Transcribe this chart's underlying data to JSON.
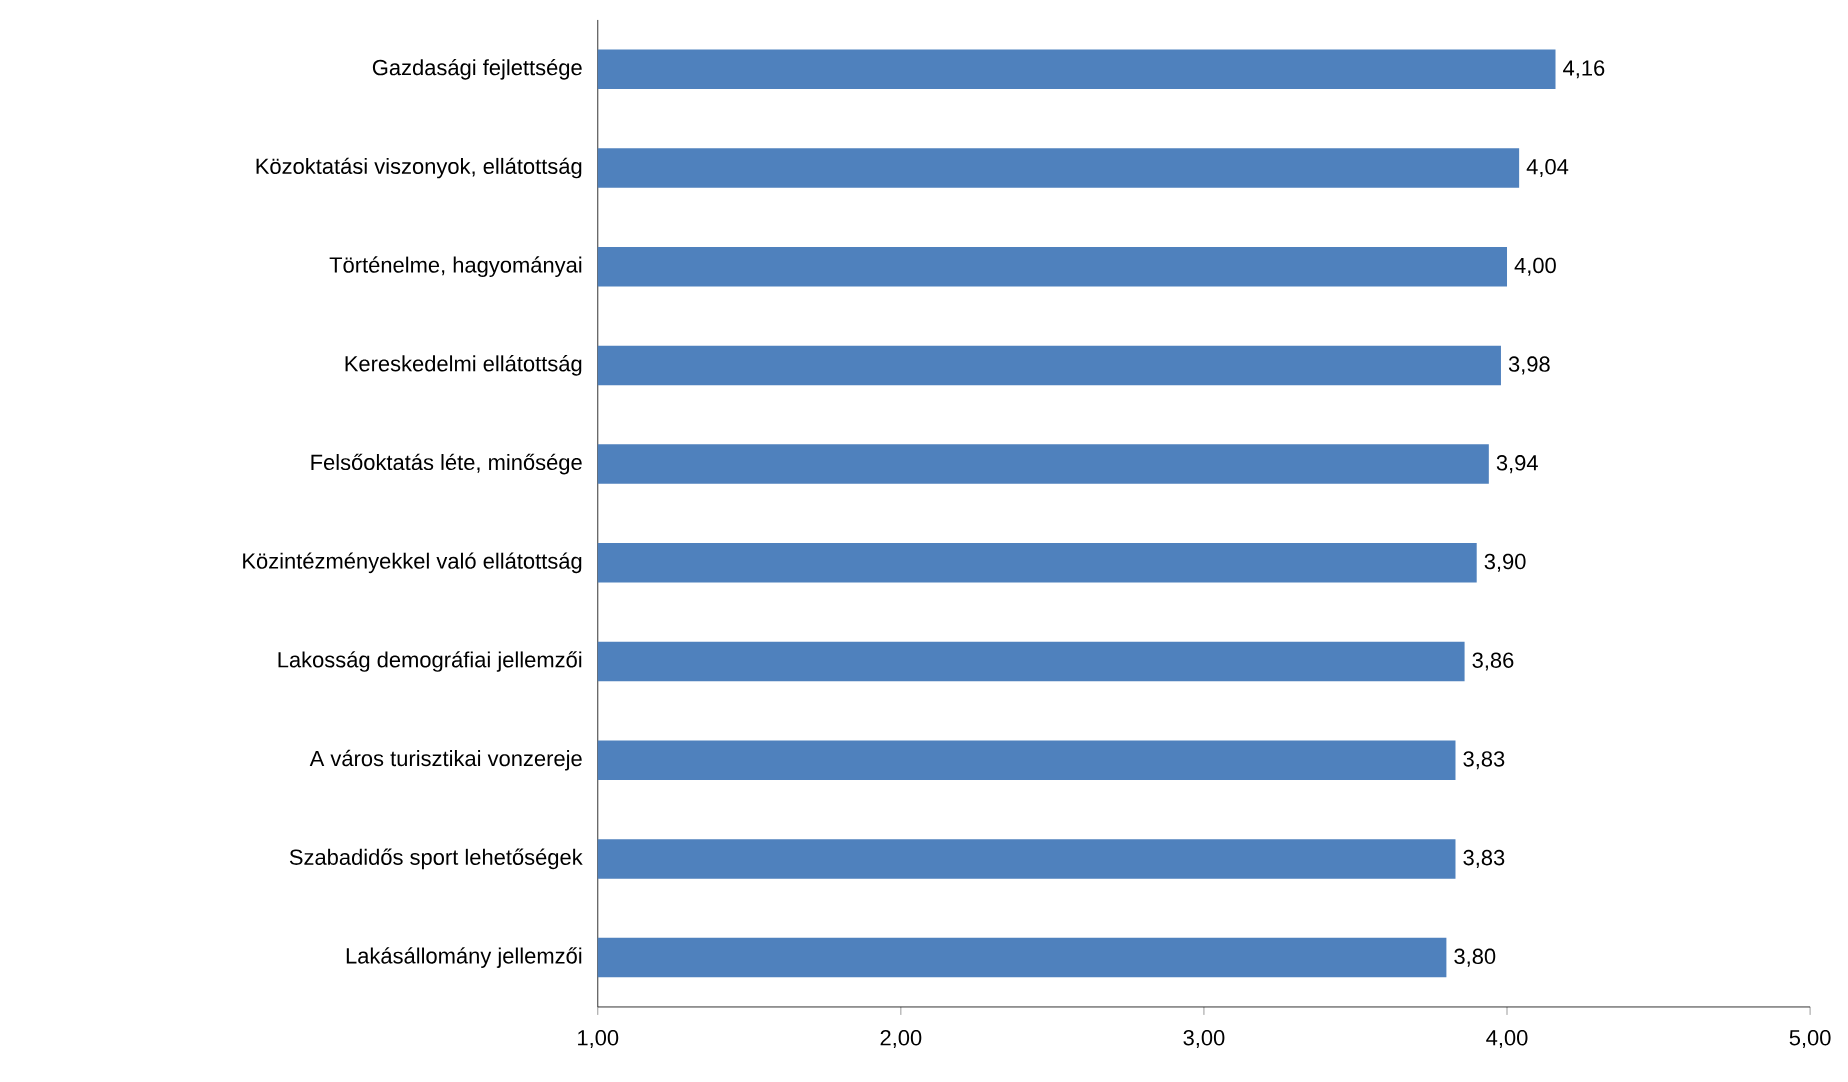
{
  "chart_data": {
    "type": "bar",
    "orientation": "horizontal",
    "categories": [
      "Gazdasági fejlettsége",
      "Közoktatási viszonyok, ellátottság",
      "Történelme, hagyományai",
      "Kereskedelmi ellátottság",
      "Felsőoktatás léte, minősége",
      "Közintézményekkel való ellátottság",
      "Lakosság demográfiai jellemzői",
      "A város turisztikai vonzereje",
      "Szabadidős sport lehetőségek",
      "Lakásállomány jellemzői"
    ],
    "values": [
      4.16,
      4.04,
      4.0,
      3.98,
      3.94,
      3.9,
      3.86,
      3.83,
      3.83,
      3.8
    ],
    "value_labels": [
      "4,16",
      "4,04",
      "4,00",
      "3,98",
      "3,94",
      "3,90",
      "3,86",
      "3,83",
      "3,83",
      "3,80"
    ],
    "color": "#4f81bd",
    "xlim": [
      1,
      5
    ],
    "xticks": [
      {
        "value": 1,
        "label": "1,00"
      },
      {
        "value": 2,
        "label": "2,00"
      },
      {
        "value": 3,
        "label": "3,00"
      },
      {
        "value": 4,
        "label": "4,00"
      },
      {
        "value": 5,
        "label": "5,00"
      }
    ],
    "grid": false
  }
}
